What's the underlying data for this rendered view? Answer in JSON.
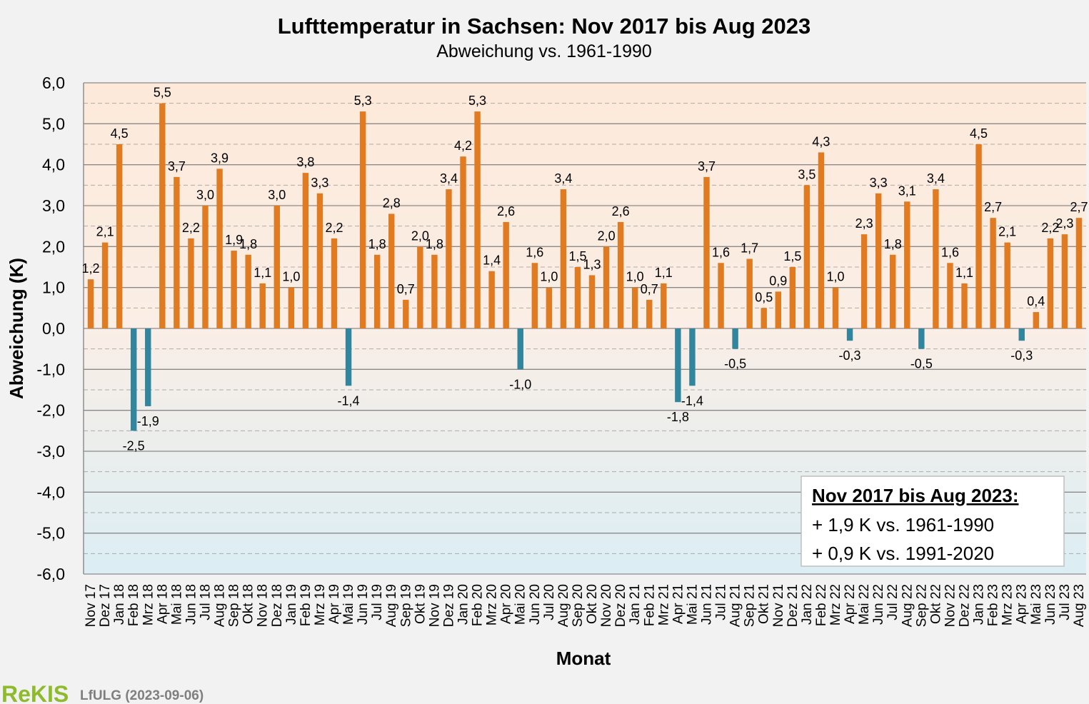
{
  "colors": {
    "positive": "#e07b21",
    "negative": "#31859c",
    "plot_warm": "#fde9d9",
    "plot_cool": "#dbeef4",
    "grid": "#808080",
    "legend_border": "#bfbfbf",
    "logo": "#8dbb2c",
    "source": "#7f7f7f"
  },
  "legend_box": {
    "title": "Nov 2017 bis Aug 2023:",
    "line1": "+ 1,9 K vs. 1961-1990",
    "line2": "+ 0,9 K vs. 1991-2020"
  },
  "footer": {
    "logo": "ReKIS",
    "source": "LfULG (2023-09-06)"
  },
  "chart_data": {
    "type": "bar",
    "title": "Lufttemperatur  in Sachsen: Nov 2017 bis Aug 2023",
    "subtitle": "Abweichung vs. 1961-1990",
    "xlabel": "Monat",
    "ylabel": "Abweichung (K)",
    "ylim": [
      -6,
      6
    ],
    "y_major_step": 1,
    "y_minor_step": 0.5,
    "ytick_labels": [
      "6,0",
      "5,0",
      "4,0",
      "3,0",
      "2,0",
      "1,0",
      "0,0",
      "-1,0",
      "-2,0",
      "-3,0",
      "-4,0",
      "-5,0",
      "-6,0"
    ],
    "grid": true,
    "legend": "bottom-right",
    "categories": [
      "Nov 17",
      "Dez 17",
      "Jan 18",
      "Feb 18",
      "Mrz 18",
      "Apr 18",
      "Mai 18",
      "Jun 18",
      "Jul 18",
      "Aug 18",
      "Sep 18",
      "Okt 18",
      "Nov 18",
      "Dez 18",
      "Jan 19",
      "Feb 19",
      "Mrz 19",
      "Apr 19",
      "Mai 19",
      "Jun 19",
      "Jul 19",
      "Aug 19",
      "Sep 19",
      "Okt 19",
      "Nov 19",
      "Dez 19",
      "Jan 20",
      "Feb 20",
      "Mrz 20",
      "Apr 20",
      "Mai 20",
      "Jun 20",
      "Jul 20",
      "Aug 20",
      "Sep 20",
      "Okt 20",
      "Nov 20",
      "Dez 20",
      "Jan 21",
      "Feb 21",
      "Mrz 21",
      "Apr 21",
      "Mai 21",
      "Jun 21",
      "Jul 21",
      "Aug 21",
      "Sep 21",
      "Okt 21",
      "Nov 21",
      "Dez 21",
      "Jan 22",
      "Feb 22",
      "Mrz 22",
      "Apr 22",
      "Mai 22",
      "Jun 22",
      "Jul 22",
      "Aug 22",
      "Sep 22",
      "Okt 22",
      "Nov 22",
      "Dez 22",
      "Jan 23",
      "Feb 23",
      "Mrz 23",
      "Apr 23",
      "Mai 23",
      "Jun 23",
      "Jul 23",
      "Aug 23"
    ],
    "values": [
      1.2,
      2.1,
      4.5,
      -2.5,
      -1.9,
      5.5,
      3.7,
      2.2,
      3.0,
      3.9,
      1.9,
      1.8,
      1.1,
      3.0,
      1.0,
      3.8,
      3.3,
      2.2,
      -1.4,
      5.3,
      1.8,
      2.8,
      0.7,
      2.0,
      1.8,
      3.4,
      4.2,
      5.3,
      1.4,
      2.6,
      -1.0,
      1.6,
      1.0,
      3.4,
      1.5,
      1.3,
      2.0,
      2.6,
      1.0,
      0.7,
      1.1,
      -1.8,
      -1.4,
      3.7,
      1.6,
      -0.5,
      1.7,
      0.5,
      0.9,
      1.5,
      3.5,
      4.3,
      1.0,
      -0.3,
      2.3,
      3.3,
      1.8,
      3.1,
      -0.5,
      3.4,
      1.6,
      1.1,
      4.5,
      2.7,
      2.1,
      -0.3,
      0.4,
      2.2,
      2.3,
      2.7
    ],
    "data_labels": [
      "1,2",
      "2,1",
      "4,5",
      "-2,5",
      "-1,9",
      "5,5",
      "3,7",
      "2,2",
      "3,0",
      "3,9",
      "1,9",
      "1,8",
      "1,1",
      "3,0",
      "1,0",
      "3,8",
      "3,3",
      "2,2",
      "-1,4",
      "5,3",
      "1,8",
      "2,8",
      "0,7",
      "2,0",
      "1,8",
      "3,4",
      "4,2",
      "5,3",
      "1,4",
      "2,6",
      "-1,0",
      "1,6",
      "1,0",
      "3,4",
      "1,5",
      "1,3",
      "2,0",
      "2,6",
      "1,0",
      "0,7",
      "1,1",
      "-1,8",
      "-1,4",
      "3,7",
      "1,6",
      "-0,5",
      "1,7",
      "0,5",
      "0,9",
      "1,5",
      "3,5",
      "4,3",
      "1,0",
      "-0,3",
      "2,3",
      "3,3",
      "1,8",
      "3,1",
      "-0,5",
      "3,4",
      "1,6",
      "1,1",
      "4,5",
      "2,7",
      "2,1",
      "-0,3",
      "0,4",
      "2,2",
      "2,3",
      "2,7"
    ]
  }
}
